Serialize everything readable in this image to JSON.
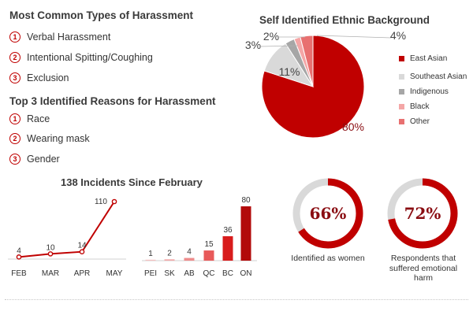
{
  "harassment_types": {
    "title": "Most Common Types of Harassment",
    "items": [
      {
        "num": "1",
        "label": "Verbal Harassment"
      },
      {
        "num": "2",
        "label": "Intentional Spitting/Coughing"
      },
      {
        "num": "3",
        "label": "Exclusion"
      }
    ]
  },
  "harassment_reasons": {
    "title": "Top 3 Identified Reasons for Harassment",
    "items": [
      {
        "num": "1",
        "label": "Race"
      },
      {
        "num": "2",
        "label": "Wearing mask"
      },
      {
        "num": "3",
        "label": "Gender"
      }
    ]
  },
  "colors": {
    "accent": "#c00000",
    "dark_red": "#8a0d12",
    "east_asian": "#c00000",
    "southeast_asian": "#d9d9d9",
    "indigenous": "#a6a6a6",
    "black": "#f4a6a6",
    "other": "#e87070",
    "donut_track": "#d9d9d9"
  },
  "chart_data": [
    {
      "type": "pie",
      "title": "Self Identified Ethnic Background",
      "labels": [
        "East Asian",
        "Southeast Asian",
        "Indigenous",
        "Black",
        "Other"
      ],
      "values": [
        80,
        11,
        3,
        2,
        4
      ],
      "value_labels": [
        "80%",
        "11%",
        "3%",
        "2%",
        "4%"
      ],
      "legend_position": "right"
    },
    {
      "type": "line",
      "title": "138 Incidents Since February",
      "categories": [
        "FEB",
        "MAR",
        "APR",
        "MAY"
      ],
      "values": [
        4,
        10,
        14,
        110
      ],
      "value_labels": [
        "4",
        "10",
        "14",
        "110"
      ]
    },
    {
      "type": "bar",
      "categories": [
        "PEI",
        "SK",
        "AB",
        "QC",
        "BC",
        "ON"
      ],
      "values": [
        1,
        2,
        4,
        15,
        36,
        80
      ],
      "value_labels": [
        "1",
        "2",
        "4",
        "15",
        "36",
        "80"
      ]
    },
    {
      "type": "pie",
      "variant": "donut",
      "value": 66,
      "value_label": "66%",
      "caption": "Identified as women"
    },
    {
      "type": "pie",
      "variant": "donut",
      "value": 72,
      "value_label": "72%",
      "caption": "Respondents that suffered emotional harm"
    }
  ]
}
